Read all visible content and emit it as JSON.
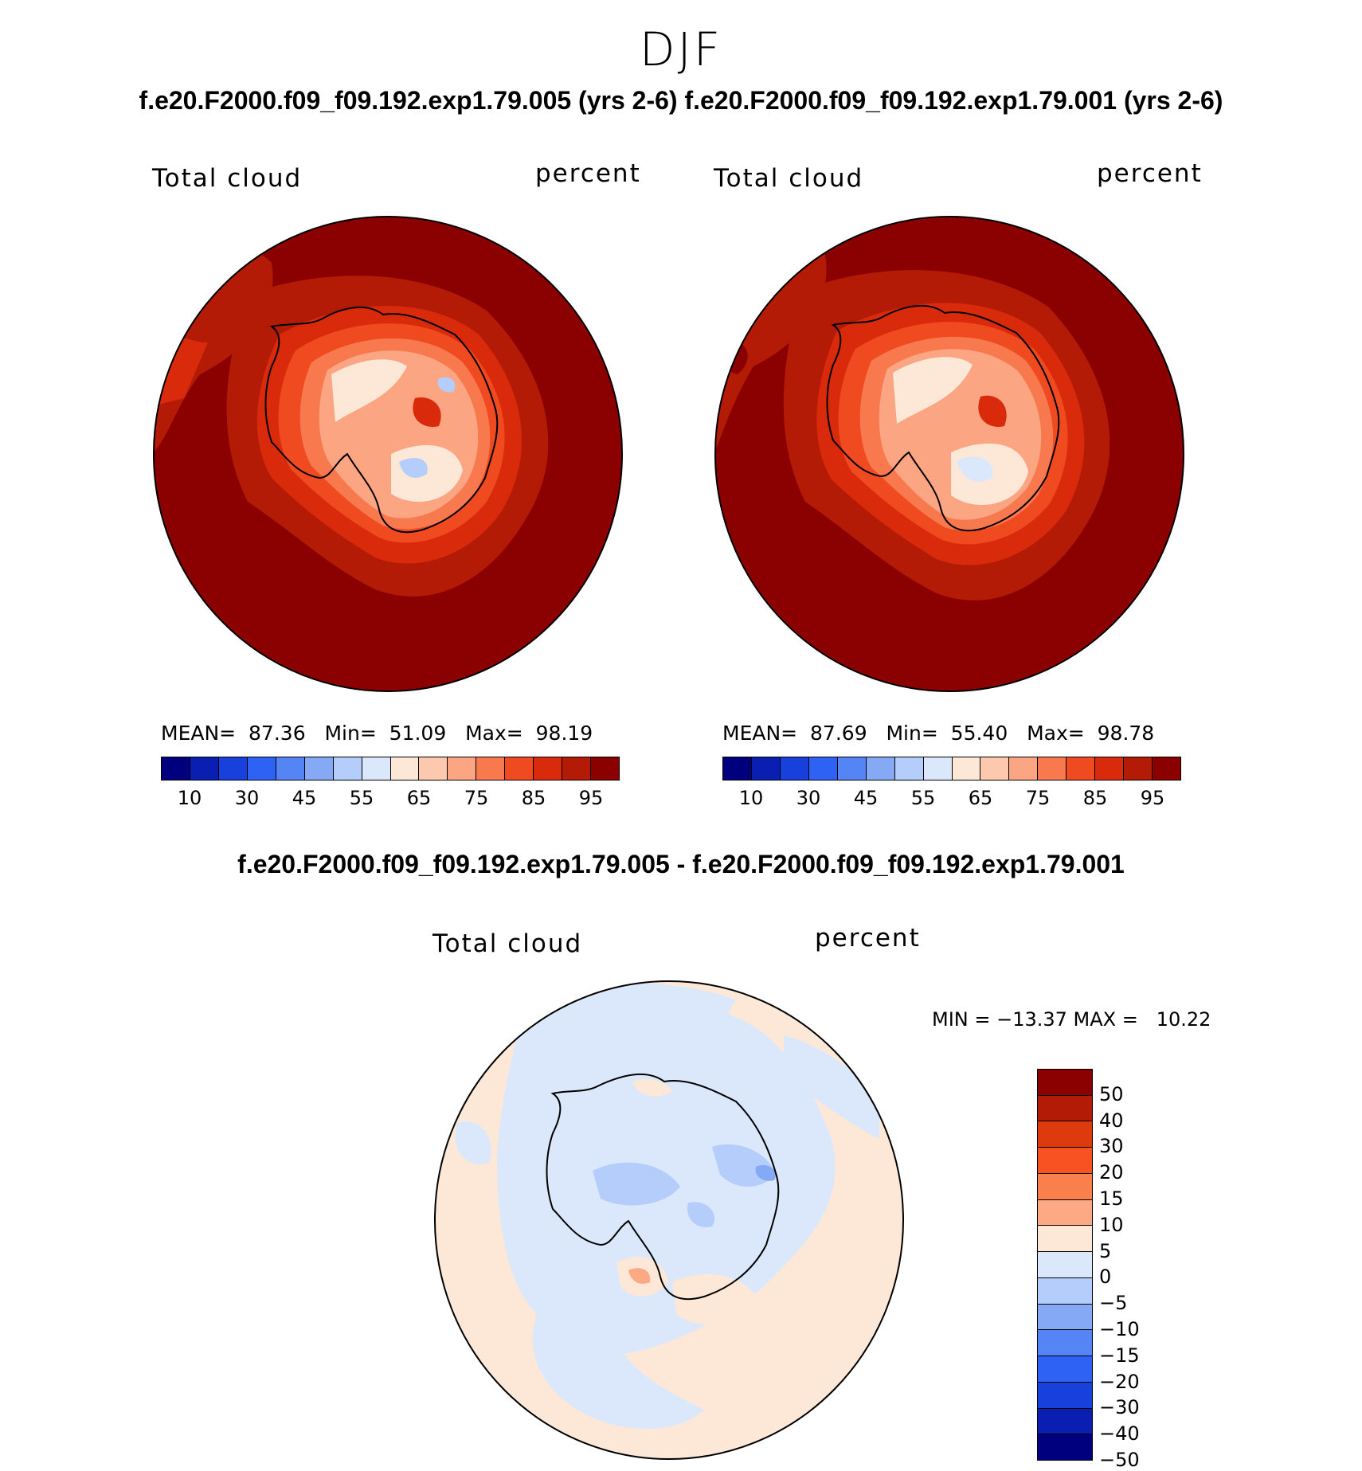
{
  "figure": {
    "season": "DJF",
    "case_titles": "f.e20.F2000.f09_f09.192.exp1.79.005 (yrs 2-6) f.e20.F2000.f09_f09.192.exp1.79.001 (yrs 2-6)",
    "diff_title": "f.e20.F2000.f09_f09.192.exp1.79.005 - f.e20.F2000.f09_f09.192.exp1.79.001"
  },
  "panels": [
    {
      "variable": "Total cloud",
      "units": "percent",
      "mean_label": "MEAN=",
      "mean": "87.36",
      "min_label": "Min=",
      "min": "51.09",
      "max_label": "Max=",
      "max": "98.19"
    },
    {
      "variable": "Total cloud",
      "units": "percent",
      "mean_label": "MEAN=",
      "mean": "87.69",
      "min_label": "Min=",
      "min": "55.40",
      "max_label": "Max=",
      "max": "98.78"
    }
  ],
  "diff_panel": {
    "variable": "Total cloud",
    "units": "percent",
    "minmax": "MIN = −13.37 MAX =   10.22"
  },
  "colorbar_abs": {
    "colors": [
      "#00007f",
      "#0a1fb2",
      "#1740dd",
      "#2d62f5",
      "#5585f5",
      "#86a9f5",
      "#b5cdfa",
      "#dbe8fb",
      "#fde8d8",
      "#fcc9ae",
      "#fba583",
      "#f9794f",
      "#f04a21",
      "#d92b0c",
      "#b31b06",
      "#8b0000"
    ],
    "ticks": [
      "10",
      "30",
      "45",
      "55",
      "65",
      "75",
      "85",
      "95"
    ]
  },
  "colorbar_diff": {
    "colors": [
      "#8b0000",
      "#b31b06",
      "#dd3a0e",
      "#f7521f",
      "#f9804d",
      "#fca984",
      "#fde8d8",
      "#dbe8fb",
      "#b5cdfa",
      "#86a9f5",
      "#5585f5",
      "#2d62f5",
      "#1740dd",
      "#0a1fb2",
      "#00007f"
    ],
    "ticks": [
      "50",
      "40",
      "30",
      "20",
      "15",
      "10",
      "5",
      "0",
      "−5",
      "−10",
      "−15",
      "−20",
      "−30",
      "−40",
      "−50"
    ]
  }
}
